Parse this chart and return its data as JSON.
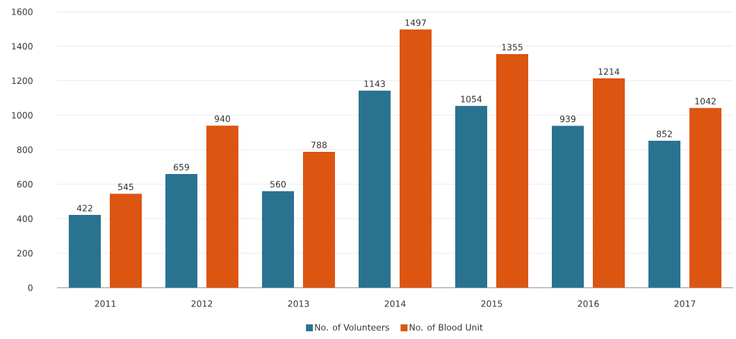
{
  "chart_data": {
    "type": "bar",
    "categories": [
      "2011",
      "2012",
      "2013",
      "2014",
      "2015",
      "2016",
      "2017"
    ],
    "series": [
      {
        "name": "No. of Volunteers",
        "color": "#2a7390",
        "values": [
          422,
          659,
          560,
          1143,
          1054,
          939,
          852
        ]
      },
      {
        "name": "No. of Blood Unit",
        "color": "#dc5511",
        "values": [
          545,
          940,
          788,
          1497,
          1355,
          1214,
          1042
        ]
      }
    ],
    "ylim": [
      0,
      1600
    ],
    "yticks": [
      0,
      200,
      400,
      600,
      800,
      1000,
      1200,
      1400,
      1600
    ],
    "grid": "y",
    "legend": "bottom",
    "data_labels": true
  }
}
